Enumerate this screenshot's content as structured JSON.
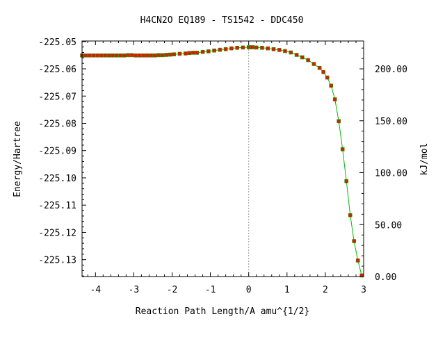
{
  "chart_data": {
    "type": "line",
    "title": "H4CN2O   EQ189 - TS1542 - DDC450",
    "xlabel": "Reaction Path Length/A amu^{1/2}",
    "ylabel": "Energy/Hartree",
    "y2label": "kJ/mol",
    "xlim": [
      -4.35,
      3.0
    ],
    "ylim": [
      -225.1362,
      -225.0498
    ],
    "y2lim": [
      0,
      226.8
    ],
    "x_ticks": [
      {
        "value": -4,
        "label": "-4"
      },
      {
        "value": -3,
        "label": "-3"
      },
      {
        "value": -2,
        "label": "-2"
      },
      {
        "value": -1,
        "label": "-1"
      },
      {
        "value": 0,
        "label": "0"
      },
      {
        "value": 1,
        "label": "1"
      },
      {
        "value": 2,
        "label": "2"
      },
      {
        "value": 3,
        "label": "3"
      }
    ],
    "y_ticks": [
      {
        "value": -225.05,
        "label": "-225.05"
      },
      {
        "value": -225.06,
        "label": "-225.06"
      },
      {
        "value": -225.07,
        "label": "-225.07"
      },
      {
        "value": -225.08,
        "label": "-225.08"
      },
      {
        "value": -225.09,
        "label": "-225.09"
      },
      {
        "value": -225.1,
        "label": "-225.10"
      },
      {
        "value": -225.11,
        "label": "-225.11"
      },
      {
        "value": -225.12,
        "label": "-225.12"
      },
      {
        "value": -225.13,
        "label": "-225.13"
      }
    ],
    "y2_ticks": [
      {
        "value": 0,
        "label": "0.00"
      },
      {
        "value": 50,
        "label": "50.00"
      },
      {
        "value": 100,
        "label": "100.00"
      },
      {
        "value": 150,
        "label": "150.00"
      },
      {
        "value": 200,
        "label": "200.00"
      }
    ],
    "ts_x": 0,
    "colors": {
      "line": "#00bb00",
      "marker": "#cc2200",
      "axis": "#000000",
      "ts_line": "#999999"
    },
    "series": [
      {
        "x": [
          -4.35,
          -4.25,
          -4.15,
          -4.05,
          -3.95,
          -3.85,
          -3.75,
          -3.65,
          -3.55,
          -3.45,
          -3.35,
          -3.25,
          -3.15,
          -3.05,
          -2.95,
          -2.85,
          -2.75,
          -2.65,
          -2.55,
          -2.45,
          -2.35,
          -2.25,
          -2.15,
          -2.05,
          -1.95,
          -1.8,
          -1.65,
          -1.55,
          -1.45,
          -1.35,
          -1.2,
          -1.05,
          -0.9,
          -0.75,
          -0.6,
          -0.45,
          -0.3,
          -0.15,
          0.0,
          0.05,
          0.1,
          0.2,
          0.35,
          0.5,
          0.65,
          0.8,
          0.95,
          1.1,
          1.25,
          1.4,
          1.55,
          1.7,
          1.85,
          1.95,
          2.05,
          2.15,
          2.25,
          2.35,
          2.45,
          2.55,
          2.65,
          2.75,
          2.85,
          2.95
        ],
        "y": [
          -225.0551,
          -225.0551,
          -225.0551,
          -225.0551,
          -225.0551,
          -225.0551,
          -225.0551,
          -225.0551,
          -225.0551,
          -225.0551,
          -225.0551,
          -225.0551,
          -225.055,
          -225.055,
          -225.0551,
          -225.0551,
          -225.0551,
          -225.0551,
          -225.0551,
          -225.0551,
          -225.055,
          -225.055,
          -225.0549,
          -225.0548,
          -225.0547,
          -225.0545,
          -225.0544,
          -225.0542,
          -225.0541,
          -225.0541,
          -225.0538,
          -225.0536,
          -225.0533,
          -225.053,
          -225.0528,
          -225.0525,
          -225.0523,
          -225.0522,
          -225.0521,
          -225.0521,
          -225.0521,
          -225.0522,
          -225.0523,
          -225.0525,
          -225.0528,
          -225.0531,
          -225.0535,
          -225.054,
          -225.0549,
          -225.0558,
          -225.0568,
          -225.0582,
          -225.0597,
          -225.0612,
          -225.0632,
          -225.0662,
          -225.0712,
          -225.0792,
          -225.0895,
          -225.1012,
          -225.1137,
          -225.1232,
          -225.1303,
          -225.1358
        ]
      }
    ]
  }
}
